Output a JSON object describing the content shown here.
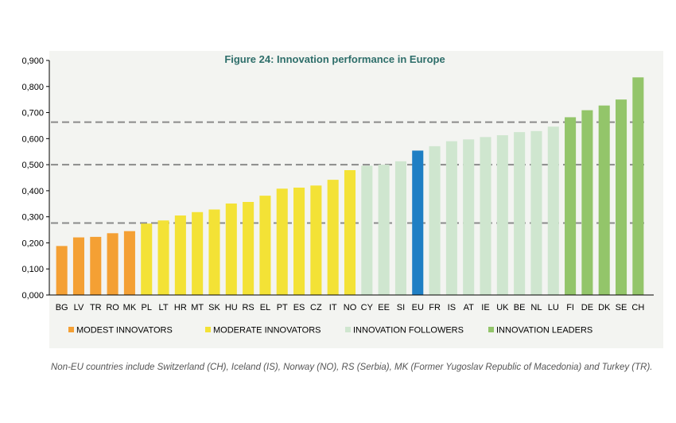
{
  "chart_data": {
    "type": "bar",
    "title": "Figure 24: Innovation performance in Europe",
    "xlabel": "",
    "ylabel": "",
    "ylim": [
      0,
      0.9
    ],
    "yticks": [
      "0,000",
      "0,100",
      "0,200",
      "0,300",
      "0,400",
      "0,500",
      "0,600",
      "0,700",
      "0,800",
      "0,900"
    ],
    "categories": [
      "BG",
      "LV",
      "TR",
      "RO",
      "MK",
      "PL",
      "LT",
      "HR",
      "MT",
      "SK",
      "HU",
      "RS",
      "EL",
      "PT",
      "ES",
      "CZ",
      "IT",
      "NO",
      "CY",
      "EE",
      "SI",
      "EU",
      "FR",
      "IS",
      "AT",
      "IE",
      "UK",
      "BE",
      "NL",
      "LU",
      "FI",
      "DE",
      "DK",
      "SE",
      "CH"
    ],
    "values": [
      0.188,
      0.221,
      0.223,
      0.237,
      0.245,
      0.274,
      0.286,
      0.305,
      0.318,
      0.328,
      0.351,
      0.357,
      0.381,
      0.408,
      0.412,
      0.42,
      0.442,
      0.479,
      0.496,
      0.5,
      0.513,
      0.554,
      0.571,
      0.59,
      0.597,
      0.606,
      0.613,
      0.625,
      0.629,
      0.646,
      0.682,
      0.709,
      0.727,
      0.75,
      0.835
    ],
    "groups": [
      "modest",
      "modest",
      "modest",
      "modest",
      "modest",
      "moderate",
      "moderate",
      "moderate",
      "moderate",
      "moderate",
      "moderate",
      "moderate",
      "moderate",
      "moderate",
      "moderate",
      "moderate",
      "moderate",
      "moderate",
      "follower",
      "follower",
      "follower",
      "eu",
      "follower",
      "follower",
      "follower",
      "follower",
      "follower",
      "follower",
      "follower",
      "follower",
      "leader",
      "leader",
      "leader",
      "leader",
      "leader"
    ],
    "thresholds": [
      0.276,
      0.5,
      0.663
    ],
    "legend": [
      {
        "key": "modest",
        "label": "MODEST INNOVATORS"
      },
      {
        "key": "moderate",
        "label": "MODERATE INNOVATORS"
      },
      {
        "key": "follower",
        "label": "INNOVATION FOLLOWERS"
      },
      {
        "key": "leader",
        "label": "INNOVATION LEADERS"
      }
    ],
    "colors": {
      "modest": "#f4a034",
      "moderate": "#f3e236",
      "follower": "#cfe6cf",
      "leader": "#93c56a",
      "eu": "#1f7fc4",
      "threshold": "#8a8a8a"
    }
  },
  "footnote": "Non-EU countries include Switzerland (CH), Iceland (IS), Norway (NO), RS (Serbia), MK (Former Yugoslav Republic of Macedonia) and Turkey (TR)."
}
